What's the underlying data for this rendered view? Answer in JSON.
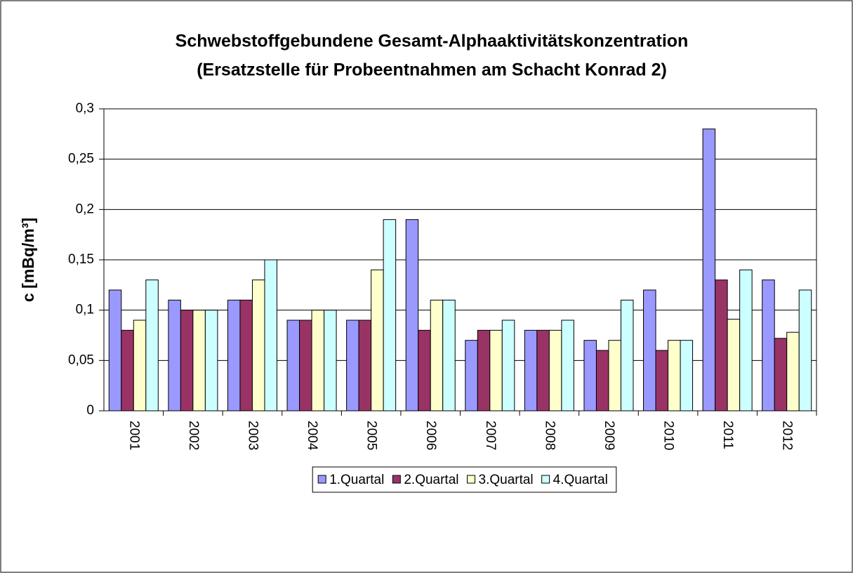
{
  "chart_data": {
    "type": "bar",
    "title": "Schwebstoffgebundene Gesamt-Alphaaktivitätskonzentration",
    "subtitle": "(Ersatzstelle für Probeentnahmen am Schacht Konrad 2)",
    "y_label": "c [mBq/m³]",
    "categories": [
      "2001",
      "2002",
      "2003",
      "2004",
      "2005",
      "2006",
      "2007",
      "2008",
      "2009",
      "2010",
      "2011",
      "2012"
    ],
    "series": [
      {
        "name": "1.Quartal",
        "color": "#9999ff",
        "values": [
          0.12,
          0.11,
          0.11,
          0.09,
          0.09,
          0.19,
          0.07,
          0.08,
          0.07,
          0.12,
          0.28,
          0.13
        ]
      },
      {
        "name": "2.Quartal",
        "color": "#993366",
        "values": [
          0.08,
          0.1,
          0.11,
          0.09,
          0.09,
          0.08,
          0.08,
          0.08,
          0.06,
          0.06,
          0.13,
          0.072
        ]
      },
      {
        "name": "3.Quartal",
        "color": "#ffffcc",
        "values": [
          0.09,
          0.1,
          0.13,
          0.1,
          0.14,
          0.11,
          0.08,
          0.08,
          0.07,
          0.07,
          0.091,
          0.078
        ]
      },
      {
        "name": "4.Quartal",
        "color": "#ccffff",
        "values": [
          0.13,
          0.1,
          0.15,
          0.1,
          0.19,
          0.11,
          0.09,
          0.09,
          0.11,
          0.07,
          0.14,
          0.12
        ]
      }
    ],
    "ylim": [
      0,
      0.3
    ],
    "yticks": [
      0,
      {
        "value": 0.05,
        "label": "0,05"
      },
      {
        "value": 0.1,
        "label": "0,1"
      },
      {
        "value": 0.15,
        "label": "0,15"
      },
      {
        "value": 0.2,
        "label": "0,2"
      },
      {
        "value": 0.25,
        "label": "0,25"
      },
      {
        "value": 0.3,
        "label": "0,3"
      }
    ],
    "grid": true,
    "legend": "bottom"
  }
}
